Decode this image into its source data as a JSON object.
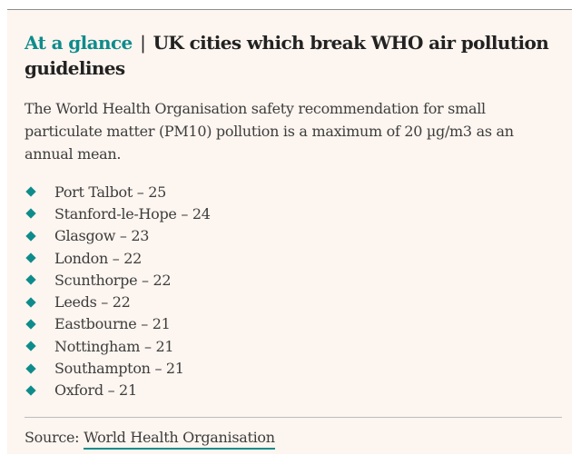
{
  "headline": {
    "kicker": "At a glance",
    "separator": "|",
    "title": "UK cities which break WHO air pollution guidelines"
  },
  "intro": "The World Health Organisation safety recommendation for small particulate matter (PM10) pollution is a maximum of 20 µg/m3 as an annual mean.",
  "cities": [
    "Port Talbot – 25",
    "Stanford-le-Hope – 24",
    "Glasgow – 23",
    "London – 22",
    "Scunthorpe – 22",
    "Leeds – 22",
    "Eastbourne – 21",
    "Nottingham – 21",
    "Southampton – 21",
    "Oxford – 21"
  ],
  "source": {
    "label": "Source:",
    "link_text": "World Health Organisation"
  },
  "colors": {
    "accent": "#0e8c8c",
    "background": "#fdf5ef",
    "text": "#3d3d3d"
  },
  "icons": {
    "bullet": "diamond-bullet-icon"
  }
}
